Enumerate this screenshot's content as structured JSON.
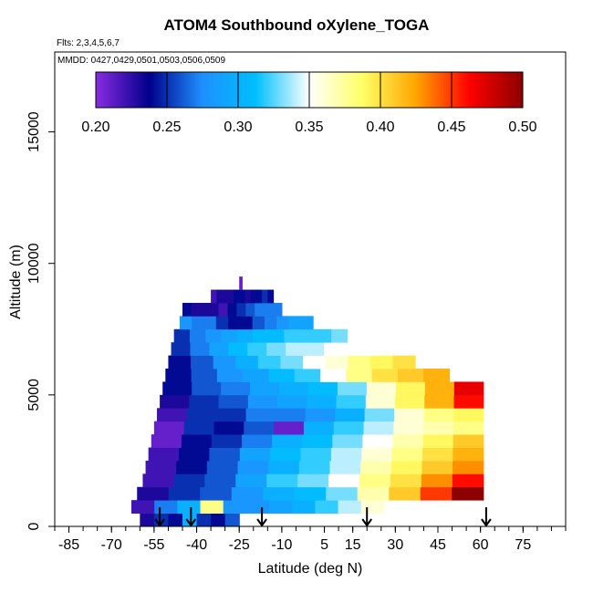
{
  "chart_data": {
    "type": "heatmap",
    "title": "ATOM4 Southbound oXylene_TOGA",
    "flights_label": "Flts: 2,3,4,5,6,7",
    "dates_label": "MMDD: 0427,0429,0501,0503,0506,0509",
    "xlabel": "Latitude (deg N)",
    "ylabel": "Altitude (m)",
    "xlim": [
      -90,
      90
    ],
    "ylim": [
      0,
      17500
    ],
    "x_ticks": [
      -85,
      -70,
      -55,
      -40,
      -25,
      -10,
      5,
      15,
      30,
      45,
      60,
      75
    ],
    "x_tick_labels": [
      "-85",
      "-70",
      "-55",
      "-40",
      "-25",
      "-10",
      "5",
      "15",
      "30",
      "45",
      "60",
      "75"
    ],
    "y_ticks": [
      0,
      5000,
      10000,
      15000
    ],
    "y_tick_labels": [
      "0",
      "5000",
      "10000",
      "15000"
    ],
    "colorbar": {
      "min": 0.2,
      "max": 0.5,
      "ticks": [
        0.2,
        0.25,
        0.3,
        0.35,
        0.4,
        0.45,
        0.5
      ],
      "tick_labels": [
        "0.20",
        "0.25",
        "0.30",
        "0.35",
        "0.40",
        "0.45",
        "0.50"
      ],
      "colors": [
        "#8a2be2",
        "#00008b",
        "#1e90ff",
        "#00bfff",
        "#ffffff",
        "#ffff66",
        "#ffa500",
        "#ff0000",
        "#8b0000"
      ]
    },
    "layers": [
      {
        "alt": [
          0,
          500
        ],
        "lat": [
          -60,
          -25
        ],
        "values": [
          0.23,
          0.25,
          0.24,
          0.3,
          0.25,
          0.24,
          0.26
        ]
      },
      {
        "alt": [
          500,
          1000
        ],
        "lat": [
          -63,
          26
        ],
        "values": [
          0.22,
          0.27,
          0.3,
          0.38,
          0.28,
          0.28,
          0.29,
          0.3,
          0.32,
          0.34,
          0.36
        ]
      },
      {
        "alt": [
          1000,
          1500
        ],
        "lat": [
          -61,
          61
        ],
        "values": [
          0.23,
          0.25,
          0.26,
          0.28,
          0.3,
          0.31,
          0.33,
          0.37,
          0.41,
          0.45,
          0.5
        ]
      },
      {
        "alt": [
          1500,
          2000
        ],
        "lat": [
          -59,
          61
        ],
        "values": [
          0.22,
          0.25,
          0.26,
          0.29,
          0.32,
          0.33,
          0.35,
          0.38,
          0.4,
          0.43,
          0.46
        ]
      },
      {
        "alt": [
          2000,
          2500
        ],
        "lat": [
          -58,
          61
        ],
        "values": [
          0.22,
          0.24,
          0.26,
          0.28,
          0.3,
          0.32,
          0.34,
          0.37,
          0.39,
          0.41,
          0.43
        ]
      },
      {
        "alt": [
          2500,
          3000
        ],
        "lat": [
          -57,
          61
        ],
        "values": [
          0.22,
          0.24,
          0.26,
          0.29,
          0.31,
          0.32,
          0.34,
          0.36,
          0.38,
          0.4,
          0.42
        ]
      },
      {
        "alt": [
          3000,
          3500
        ],
        "lat": [
          -56,
          61
        ],
        "values": [
          0.21,
          0.24,
          0.25,
          0.27,
          0.3,
          0.31,
          0.33,
          0.35,
          0.37,
          0.39,
          0.41
        ]
      },
      {
        "alt": [
          3500,
          4000
        ],
        "lat": [
          -55,
          61
        ],
        "values": [
          0.21,
          0.25,
          0.24,
          0.26,
          0.21,
          0.3,
          0.32,
          0.34,
          0.36,
          0.37,
          0.38
        ]
      },
      {
        "alt": [
          4000,
          4500
        ],
        "lat": [
          -54,
          61
        ],
        "values": [
          0.22,
          0.25,
          0.25,
          0.27,
          0.27,
          0.28,
          0.3,
          0.33,
          0.36,
          0.38,
          0.39
        ]
      },
      {
        "alt": [
          4500,
          5000
        ],
        "lat": [
          -53,
          61
        ],
        "values": [
          0.23,
          0.25,
          0.26,
          0.28,
          0.29,
          0.3,
          0.32,
          0.36,
          0.39,
          0.42,
          0.46
        ]
      },
      {
        "alt": [
          5000,
          5500
        ],
        "lat": [
          -52,
          61
        ],
        "values": [
          0.24,
          0.26,
          0.27,
          0.29,
          0.3,
          0.31,
          0.33,
          0.36,
          0.39,
          0.42,
          0.47
        ]
      },
      {
        "alt": [
          5500,
          6000
        ],
        "lat": [
          -51,
          49
        ],
        "values": [
          0.24,
          0.26,
          0.28,
          0.29,
          0.31,
          0.32,
          0.35,
          0.38,
          0.4,
          0.41,
          0.42
        ]
      },
      {
        "alt": [
          6000,
          6500
        ],
        "lat": [
          -50,
          37
        ],
        "values": [
          0.24,
          0.26,
          0.28,
          0.3,
          0.32,
          0.33,
          0.35,
          0.36,
          0.38,
          0.39,
          0.4
        ]
      },
      {
        "alt": [
          6500,
          7000
        ],
        "lat": [
          -49,
          25
        ],
        "values": [
          0.25,
          0.27,
          0.29,
          0.31,
          0.32,
          0.33,
          0.34,
          0.34,
          0.35,
          0.35,
          0.35
        ]
      },
      {
        "alt": [
          7000,
          7500
        ],
        "lat": [
          -48,
          13
        ],
        "values": [
          0.25,
          0.27,
          0.28,
          0.29,
          0.3,
          0.31,
          0.31,
          0.32,
          0.32,
          0.32,
          0.33
        ]
      },
      {
        "alt": [
          7500,
          8000
        ],
        "lat": [
          -46,
          1
        ],
        "values": [
          0.28,
          0.27,
          0.27,
          0.25,
          0.24,
          0.24,
          0.26,
          0.27,
          0.28,
          0.29,
          0.29
        ]
      },
      {
        "alt": [
          8000,
          8500
        ],
        "lat": [
          -45,
          -10
        ],
        "values": [
          0.24,
          0.23,
          0.23,
          0.23,
          0.22,
          0.24,
          0.25,
          0.26,
          0.27,
          0.27,
          0.27
        ]
      },
      {
        "alt": [
          8500,
          9000
        ],
        "lat": [
          -35,
          -13
        ],
        "values": [
          0.22,
          0.23,
          0.23,
          0.23,
          0.24,
          0.24,
          0.23,
          0.24,
          0.24,
          0.25,
          0.24
        ]
      },
      {
        "alt": [
          9000,
          9500
        ],
        "lat": [
          -25,
          -24
        ],
        "values": [
          0.21
        ]
      }
    ],
    "flight_arrows_lat": [
      -53,
      -42,
      -17,
      20,
      62
    ]
  }
}
